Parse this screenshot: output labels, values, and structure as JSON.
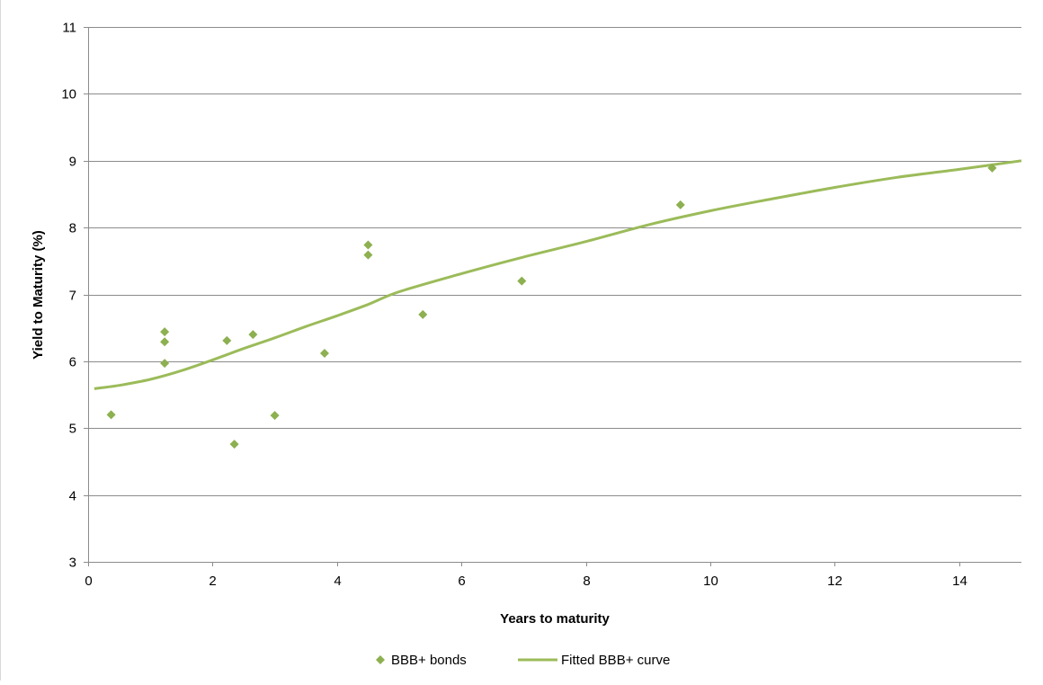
{
  "chart_data": {
    "type": "scatter",
    "xlabel": "Years to maturity",
    "ylabel": "Yield to Maturity (%)",
    "xlim": [
      0,
      15
    ],
    "ylim": [
      3,
      11
    ],
    "x_ticks": [
      0,
      2,
      4,
      6,
      8,
      10,
      12,
      14
    ],
    "y_ticks": [
      3,
      4,
      5,
      6,
      7,
      8,
      9,
      10,
      11
    ],
    "grid": "horizontal",
    "legend_position": "bottom",
    "series": [
      {
        "name": "BBB+ bonds",
        "kind": "scatter",
        "marker": "diamond",
        "color": "#8db050",
        "points": [
          {
            "x": 0.37,
            "y": 5.2
          },
          {
            "x": 1.23,
            "y": 6.44
          },
          {
            "x": 1.23,
            "y": 6.29
          },
          {
            "x": 1.23,
            "y": 5.97
          },
          {
            "x": 2.23,
            "y": 6.31
          },
          {
            "x": 2.35,
            "y": 4.76
          },
          {
            "x": 2.65,
            "y": 6.4
          },
          {
            "x": 3.0,
            "y": 5.19
          },
          {
            "x": 3.8,
            "y": 6.12
          },
          {
            "x": 4.5,
            "y": 7.74
          },
          {
            "x": 4.5,
            "y": 7.59
          },
          {
            "x": 5.38,
            "y": 6.7
          },
          {
            "x": 6.97,
            "y": 7.2
          },
          {
            "x": 9.52,
            "y": 8.34
          },
          {
            "x": 14.53,
            "y": 8.89
          }
        ]
      },
      {
        "name": "Fitted BBB+ curve",
        "kind": "line",
        "color": "#9bbb59",
        "points": [
          {
            "x": 0.1,
            "y": 5.59
          },
          {
            "x": 0.5,
            "y": 5.64
          },
          {
            "x": 1.0,
            "y": 5.73
          },
          {
            "x": 1.5,
            "y": 5.86
          },
          {
            "x": 2.0,
            "y": 6.02
          },
          {
            "x": 2.5,
            "y": 6.19
          },
          {
            "x": 3.0,
            "y": 6.35
          },
          {
            "x": 3.5,
            "y": 6.52
          },
          {
            "x": 4.0,
            "y": 6.68
          },
          {
            "x": 4.5,
            "y": 6.85
          },
          {
            "x": 5.0,
            "y": 7.04
          },
          {
            "x": 6.0,
            "y": 7.31
          },
          {
            "x": 7.0,
            "y": 7.56
          },
          {
            "x": 8.0,
            "y": 7.79
          },
          {
            "x": 9.0,
            "y": 8.04
          },
          {
            "x": 10.0,
            "y": 8.25
          },
          {
            "x": 11.0,
            "y": 8.43
          },
          {
            "x": 12.0,
            "y": 8.6
          },
          {
            "x": 13.0,
            "y": 8.75
          },
          {
            "x": 14.0,
            "y": 8.87
          },
          {
            "x": 15.0,
            "y": 9.0
          }
        ]
      }
    ]
  }
}
